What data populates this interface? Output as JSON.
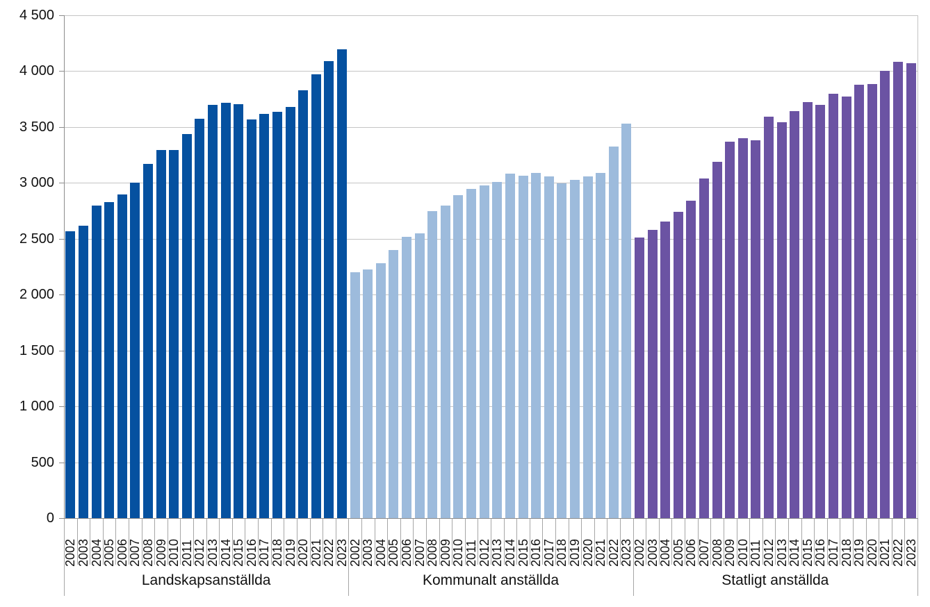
{
  "chart_data": {
    "type": "bar",
    "title": "",
    "xlabel": "",
    "ylabel": "",
    "ylim": [
      0,
      4500
    ],
    "ytick_interval": 500,
    "ytick_labels": [
      "0",
      "500",
      "1 000",
      "1 500",
      "2 000",
      "2 500",
      "3 000",
      "3 500",
      "4 000",
      "4 500"
    ],
    "grid": true,
    "legend_position": "none",
    "categories": [
      "2002",
      "2003",
      "2004",
      "2005",
      "2006",
      "2007",
      "2008",
      "2009",
      "2010",
      "2011",
      "2012",
      "2013",
      "2014",
      "2015",
      "2016",
      "2017",
      "2018",
      "2019",
      "2020",
      "2021",
      "2022",
      "2023"
    ],
    "groups": [
      {
        "label": "Landskapsanställda",
        "color": "#0551A0",
        "values": [
          2565,
          2615,
          2800,
          2825,
          2895,
          3000,
          3170,
          3295,
          3295,
          3440,
          3575,
          3700,
          3715,
          3705,
          3570,
          3615,
          3635,
          3680,
          3830,
          3970,
          4090,
          4195
        ]
      },
      {
        "label": "Kommunalt anställda",
        "color": "#9DBBDC",
        "values": [
          2200,
          2225,
          2280,
          2400,
          2520,
          2550,
          2745,
          2800,
          2890,
          2945,
          2980,
          3010,
          3080,
          3065,
          3090,
          3060,
          2995,
          3025,
          3055,
          3090,
          3325,
          3530
        ]
      },
      {
        "label": "Statligt anställda",
        "color": "#6B53A3",
        "values": [
          2510,
          2580,
          2655,
          2740,
          2840,
          3040,
          3190,
          3370,
          3400,
          3380,
          3590,
          3540,
          3645,
          3720,
          3700,
          3795,
          3775,
          3880,
          3885,
          4000,
          4085,
          4070
        ]
      }
    ]
  },
  "style_colors": {
    "axis": "#8C8C8C",
    "gridline": "#C4C4C4",
    "separator": "#A6A6A6",
    "text": "#111111",
    "background": "#FFFFFF"
  }
}
